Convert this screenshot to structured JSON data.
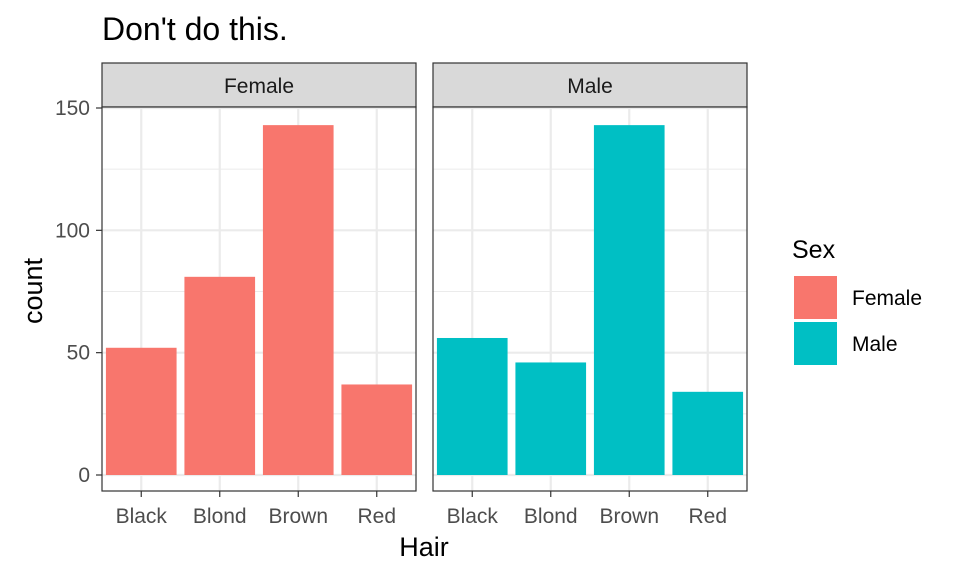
{
  "chart_data": {
    "type": "bar",
    "title": "Don't do this.",
    "xlabel": "Hair",
    "ylabel": "count",
    "ylim": [
      0,
      160
    ],
    "yticks": [
      0,
      50,
      100,
      150
    ],
    "categories": [
      "Black",
      "Blond",
      "Brown",
      "Red"
    ],
    "facet_variable": "Sex",
    "panels": [
      {
        "strip": "Female",
        "values": [
          52,
          81,
          143,
          37
        ]
      },
      {
        "strip": "Male",
        "values": [
          56,
          46,
          143,
          34
        ]
      }
    ],
    "legend": {
      "title": "Sex",
      "placement": "right",
      "items": [
        {
          "label": "Female",
          "color": "#F8766D"
        },
        {
          "label": "Male",
          "color": "#00BFC4"
        }
      ]
    },
    "grid": true
  }
}
